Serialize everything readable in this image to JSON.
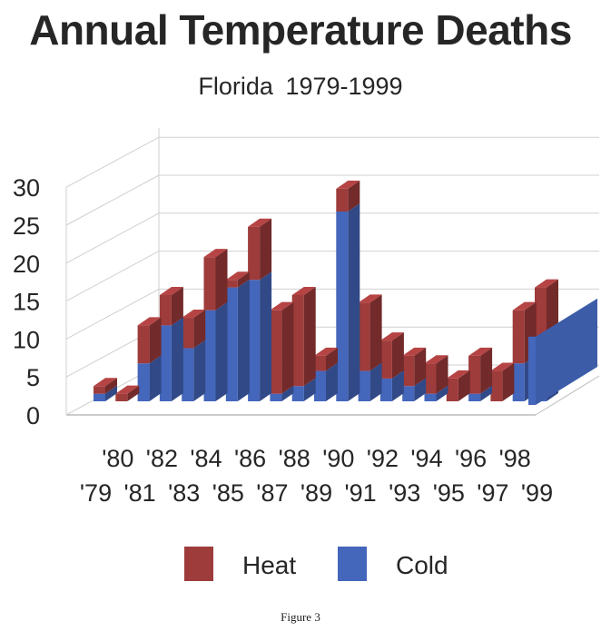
{
  "title": "Annual Temperature Deaths",
  "subtitle": "Florida  1979-1999",
  "figure_label": "Figure 3",
  "chart_data": {
    "type": "bar",
    "stacked": true,
    "style": "3d",
    "categories": [
      "'79",
      "'80",
      "'81",
      "'82",
      "'83",
      "'84",
      "'85",
      "'86",
      "'87",
      "'88",
      "'89",
      "'90",
      "'91",
      "'92",
      "'93",
      "'94",
      "'95",
      "'96",
      "'97",
      "'98",
      "'99"
    ],
    "series": [
      {
        "name": "Cold",
        "color": "#4466bb",
        "values": [
          1,
          0,
          5,
          10,
          7,
          12,
          15,
          16,
          1,
          2,
          4,
          25,
          4,
          3,
          2,
          1,
          0,
          1,
          0,
          5,
          1
        ]
      },
      {
        "name": "Heat",
        "color": "#9e3b3b",
        "values": [
          1,
          1,
          5,
          4,
          4,
          7,
          1,
          7,
          11,
          12,
          2,
          3,
          9,
          5,
          4,
          4,
          3,
          5,
          4,
          7,
          14
        ]
      }
    ],
    "front_series_values": [
      9
    ],
    "ylim": [
      0,
      30
    ],
    "yticks": [
      0,
      5,
      10,
      15,
      20,
      25,
      30
    ],
    "xlabel": "",
    "ylabel": "",
    "grid": true,
    "legend_position": "bottom"
  },
  "legend": {
    "heat_label": "Heat",
    "cold_label": "Cold"
  },
  "colors": {
    "heat": "#9e3b3b",
    "cold": "#4466bb",
    "grid": "#bdbdbd",
    "text": "#262626"
  }
}
